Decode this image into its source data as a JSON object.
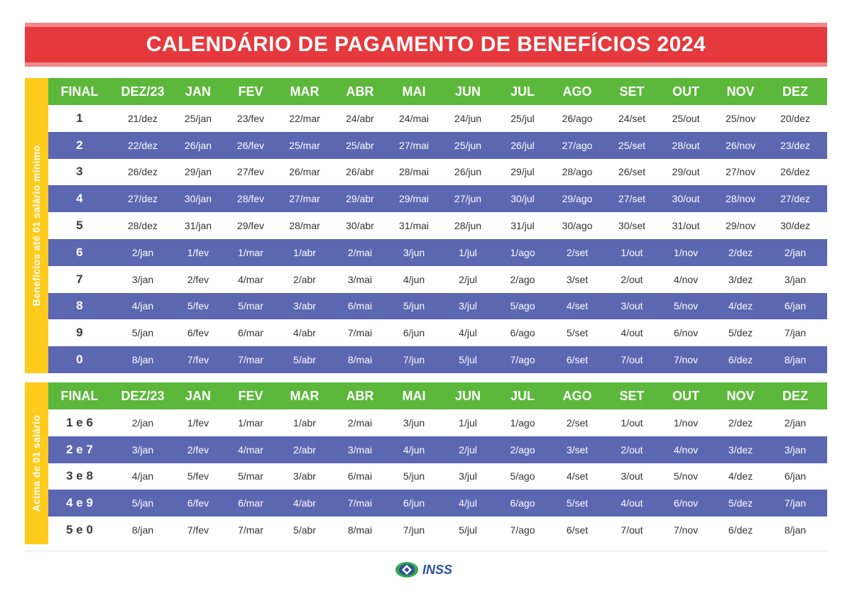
{
  "title": "CALENDÁRIO DE PAGAMENTO DE BENEFÍCIOS 2024",
  "headers": [
    "FINAL",
    "DEZ/23",
    "JAN",
    "FEV",
    "MAR",
    "ABR",
    "MAI",
    "JUN",
    "JUL",
    "AGO",
    "SET",
    "OUT",
    "NOV",
    "DEZ"
  ],
  "section1": {
    "side_label": "Benefícios até 01 salário mínimo",
    "rows": [
      [
        "1",
        "21/dez",
        "25/jan",
        "23/fev",
        "22/mar",
        "24/abr",
        "24/mai",
        "24/jun",
        "25/jul",
        "26/ago",
        "24/set",
        "25/out",
        "25/nov",
        "20/dez"
      ],
      [
        "2",
        "22/dez",
        "26/jan",
        "26/fev",
        "25/mar",
        "25/abr",
        "27/mai",
        "25/jun",
        "26/jul",
        "27/ago",
        "25/set",
        "28/out",
        "26/nov",
        "23/dez"
      ],
      [
        "3",
        "26/dez",
        "29/jan",
        "27/fev",
        "26/mar",
        "26/abr",
        "28/mai",
        "26/jun",
        "29/jul",
        "28/ago",
        "26/set",
        "29/out",
        "27/nov",
        "26/dez"
      ],
      [
        "4",
        "27/dez",
        "30/jan",
        "28/fev",
        "27/mar",
        "29/abr",
        "29/mai",
        "27/jun",
        "30/jul",
        "29/ago",
        "27/set",
        "30/out",
        "28/nov",
        "27/dez"
      ],
      [
        "5",
        "28/dez",
        "31/jan",
        "29/fev",
        "28/mar",
        "30/abr",
        "31/mai",
        "28/jun",
        "31/jul",
        "30/ago",
        "30/set",
        "31/out",
        "29/nov",
        "30/dez"
      ],
      [
        "6",
        "2/jan",
        "1/fev",
        "1/mar",
        "1/abr",
        "2/mai",
        "3/jun",
        "1/jul",
        "1/ago",
        "2/set",
        "1/out",
        "1/nov",
        "2/dez",
        "2/jan"
      ],
      [
        "7",
        "3/jan",
        "2/fev",
        "4/mar",
        "2/abr",
        "3/mai",
        "4/jun",
        "2/jul",
        "2/ago",
        "3/set",
        "2/out",
        "4/nov",
        "3/dez",
        "3/jan"
      ],
      [
        "8",
        "4/jan",
        "5/fev",
        "5/mar",
        "3/abr",
        "6/mai",
        "5/jun",
        "3/jul",
        "5/ago",
        "4/set",
        "3/out",
        "5/nov",
        "4/dez",
        "6/jan"
      ],
      [
        "9",
        "5/jan",
        "6/fev",
        "6/mar",
        "4/abr",
        "7/mai",
        "6/jun",
        "4/jul",
        "6/ago",
        "5/set",
        "4/out",
        "6/nov",
        "5/dez",
        "7/jan"
      ],
      [
        "0",
        "8/jan",
        "7/fev",
        "7/mar",
        "5/abr",
        "8/mai",
        "7/jun",
        "5/jul",
        "7/ago",
        "6/set",
        "7/out",
        "7/nov",
        "6/dez",
        "8/jan"
      ]
    ]
  },
  "section2": {
    "side_label": "Acima de 01 salário",
    "rows": [
      [
        "1 e 6",
        "2/jan",
        "1/fev",
        "1/mar",
        "1/abr",
        "2/mai",
        "3/jun",
        "1/jul",
        "1/ago",
        "2/set",
        "1/out",
        "1/nov",
        "2/dez",
        "2/jan"
      ],
      [
        "2 e 7",
        "3/jan",
        "2/fev",
        "4/mar",
        "2/abr",
        "3/mai",
        "4/jun",
        "2/jul",
        "2/ago",
        "3/set",
        "2/out",
        "4/nov",
        "3/dez",
        "3/jan"
      ],
      [
        "3 e 8",
        "4/jan",
        "5/fev",
        "5/mar",
        "3/abr",
        "6/mai",
        "5/jun",
        "3/jul",
        "5/ago",
        "4/set",
        "3/out",
        "5/nov",
        "4/dez",
        "6/jan"
      ],
      [
        "4 e 9",
        "5/jan",
        "6/fev",
        "6/mar",
        "4/abr",
        "7/mai",
        "6/jun",
        "4/jul",
        "6/ago",
        "5/set",
        "4/out",
        "6/nov",
        "5/dez",
        "7/jan"
      ],
      [
        "5 e 0",
        "8/jan",
        "7/fev",
        "7/mar",
        "5/abr",
        "8/mai",
        "7/jun",
        "5/jul",
        "7/ago",
        "6/set",
        "7/out",
        "7/nov",
        "6/dez",
        "8/jan"
      ]
    ]
  },
  "footer": {
    "logo_text": "INSS"
  },
  "colors": {
    "title_bg": "#e5393d",
    "header_bg": "#5bb83a",
    "stripe_bg": "#5b67b1",
    "side_bar_bg": "#ffcc1e"
  }
}
